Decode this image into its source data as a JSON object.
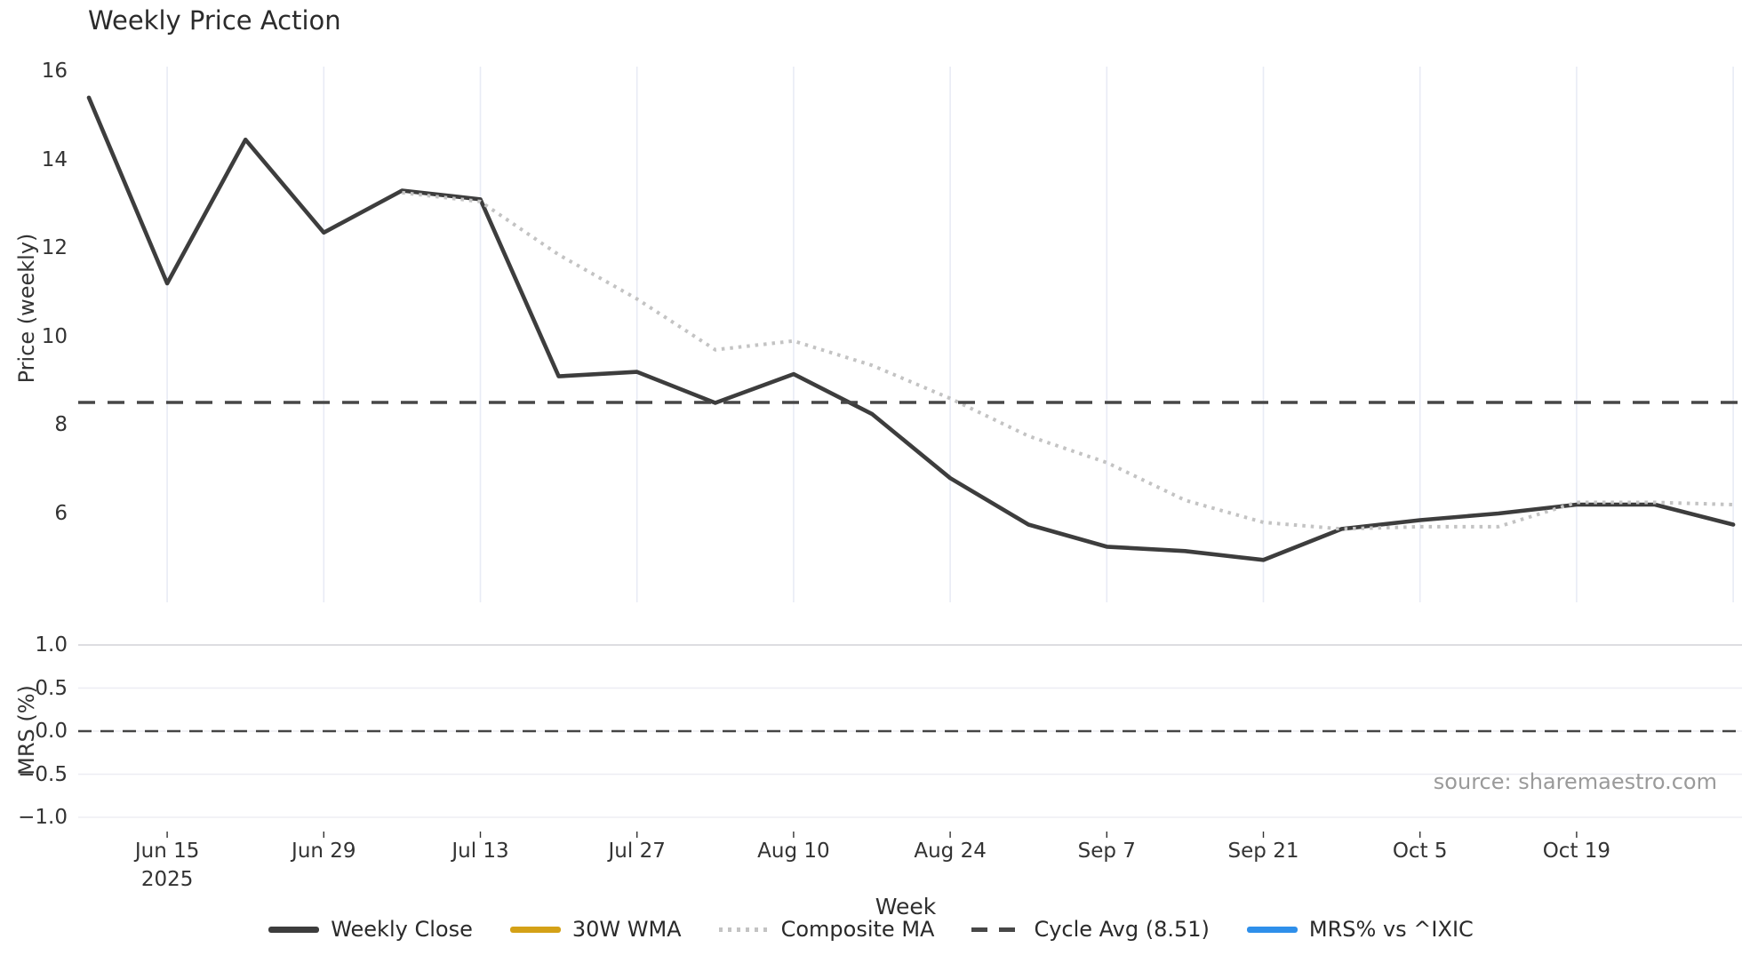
{
  "chart_data": {
    "type": "line",
    "title": "Weekly Price Action",
    "xlabel": "Week",
    "price_panel": {
      "ylabel": "Price (weekly)",
      "ytick_labels": [
        "16",
        "14",
        "12",
        "10",
        "8",
        "6"
      ],
      "ytick_values": [
        16,
        14,
        12,
        10,
        8,
        6
      ],
      "ylim": [
        3.95,
        16.45
      ],
      "grid": "vertical-only"
    },
    "mrs_panel": {
      "ylabel": "MRS (%)",
      "ytick_labels": [
        "1.0",
        "0.5",
        "0.0",
        "−0.5",
        "−1.0"
      ],
      "ytick_values": [
        1.0,
        0.5,
        0.0,
        -0.5,
        -1.0
      ],
      "ylim": [
        -1.25,
        1.25
      ],
      "zero_line": 0.0,
      "grid": "horizontal-only"
    },
    "x_tick_labels": [
      "Jun 15",
      "Jun 29",
      "Jul 13",
      "Jul 27",
      "Aug 10",
      "Aug 24",
      "Sep 7",
      "Sep 21",
      "Oct 5",
      "Oct 19"
    ],
    "x_first_tick_year": "2025",
    "weeks": [
      "Jun 9",
      "Jun 16",
      "Jun 23",
      "Jun 30",
      "Jul 7",
      "Jul 14",
      "Jul 21",
      "Jul 28",
      "Aug 4",
      "Aug 11",
      "Aug 18",
      "Aug 25",
      "Sep 1",
      "Sep 8",
      "Sep 15",
      "Sep 22",
      "Sep 29",
      "Oct 6",
      "Oct 13",
      "Oct 20",
      "Oct 27",
      "Nov 3"
    ],
    "series": [
      {
        "name": "Weekly Close",
        "style": "solid",
        "color": "#3d3d3d",
        "panel": "price",
        "start_index": 0,
        "values": [
          15.4,
          11.2,
          14.45,
          12.35,
          13.3,
          13.1,
          9.1,
          9.2,
          8.5,
          9.15,
          8.25,
          6.8,
          5.75,
          5.25,
          5.15,
          4.95,
          5.65,
          5.85,
          6.0,
          6.2,
          6.2,
          5.75
        ]
      },
      {
        "name": "30W WMA",
        "style": "solid",
        "color": "#d4a117",
        "panel": "price",
        "start_index": 0,
        "values": []
      },
      {
        "name": "Composite MA",
        "style": "dotted",
        "color": "#c3c3c3",
        "panel": "price",
        "start_index": 4,
        "values": [
          13.25,
          13.05,
          11.85,
          10.85,
          9.7,
          9.9,
          9.35,
          8.6,
          7.75,
          7.15,
          6.3,
          5.8,
          5.65,
          5.7,
          5.7,
          6.25,
          6.25,
          6.2
        ]
      },
      {
        "name": "Cycle Avg (8.51)",
        "style": "dashed",
        "color": "#474747",
        "panel": "price",
        "constant": 8.51
      },
      {
        "name": "MRS% vs ^IXIC",
        "style": "solid",
        "color": "#2e8fea",
        "panel": "mrs",
        "start_index": 0,
        "values": []
      }
    ],
    "legend": [
      {
        "label": "Weekly Close",
        "swatch": "solid",
        "color": "#3d3d3d"
      },
      {
        "label": "30W WMA",
        "swatch": "solid",
        "color": "#d4a117"
      },
      {
        "label": "Composite MA",
        "swatch": "dotted",
        "color": "#c3c3c3"
      },
      {
        "label": "Cycle Avg (8.51)",
        "swatch": "dashed",
        "color": "#474747"
      },
      {
        "label": "MRS% vs ^IXIC",
        "swatch": "solid",
        "color": "#2e8fea"
      }
    ],
    "source": "source: sharemaestro.com",
    "colors": {
      "vertical_grid": "#e8ebf5",
      "horizontal_grid": "#ededf3",
      "horizontal_grid_top": "#d2d2d7",
      "tick_text": "#333333",
      "source_text": "#9a9a9a"
    }
  }
}
